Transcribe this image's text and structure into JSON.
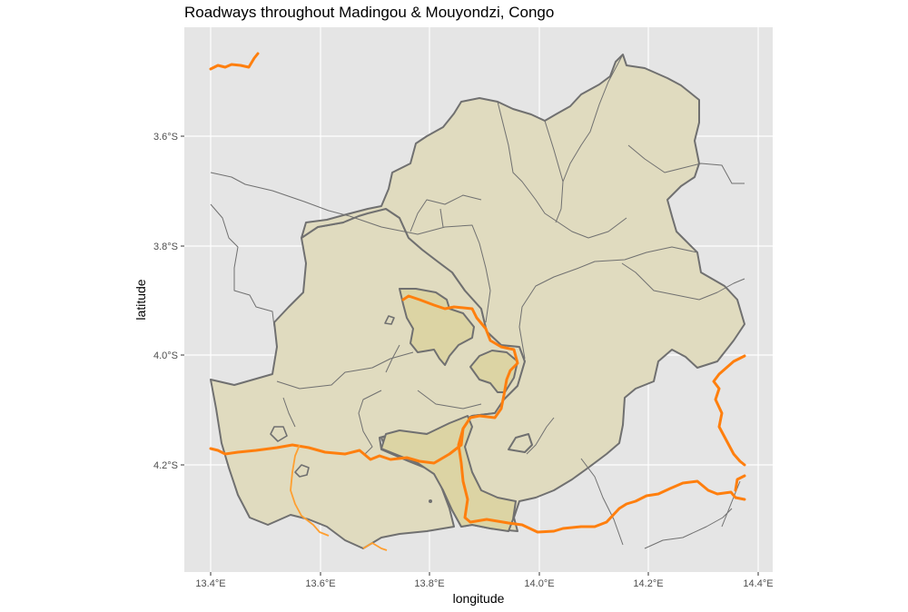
{
  "map": {
    "title": "Roadways throughout Madingou & Mouyondzi, Congo",
    "xlabel": "longitude",
    "ylabel": "latitude",
    "x_ticks": [
      "13.4°E",
      "13.6°E",
      "13.8°E",
      "14.0°E",
      "14.2°E",
      "14.4°E"
    ],
    "y_ticks": [
      "3.6°S",
      "3.8°S",
      "4.0°S",
      "4.2°S"
    ],
    "colors": {
      "panel_background": "#e5e5e5",
      "gridline": "#ffffff",
      "district_fill": "#e0dbbf",
      "district_border": "#707070",
      "inner_district_fill": "#dcd4a4",
      "primary_road": "#ff7f0e",
      "secondary_road": "#707070"
    }
  }
}
